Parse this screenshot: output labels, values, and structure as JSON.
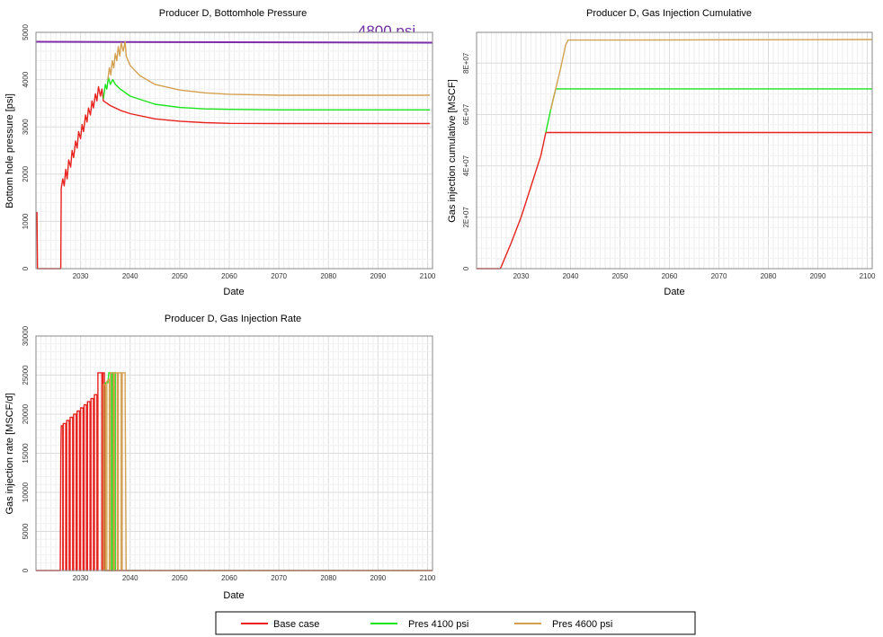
{
  "colors": {
    "base": "#e8231f",
    "p4100": "#18e418",
    "p4600": "#d4a050",
    "ref": "#7e2fa8",
    "grid": "#dcdcdc"
  },
  "legend": {
    "items": [
      {
        "label": "Base case",
        "color": "#e8231f"
      },
      {
        "label": "Pres 4100 psi",
        "color": "#18e418"
      },
      {
        "label": "Pres 4600 psi",
        "color": "#d4a050"
      }
    ],
    "placement": "bottom"
  },
  "chart_data": [
    {
      "type": "line",
      "title": "Producer D, Bottomhole Pressure",
      "xlabel": "Date",
      "ylabel": "Bottom hole pressure [psi]",
      "xlim": [
        2021,
        2101
      ],
      "ylim": [
        0,
        5000
      ],
      "xticks": [
        "2030",
        "2040",
        "2050",
        "2060",
        "2070",
        "2080",
        "2090",
        "2100"
      ],
      "yticks": [
        "0",
        "1000",
        "2000",
        "3000",
        "4000",
        "5000"
      ],
      "grid": true,
      "annotation": "4800 psi",
      "reference_line": {
        "y": 4800,
        "color": "#7e2fa8"
      },
      "series": [
        {
          "name": "Base case",
          "color": "#e8231f",
          "points": [
            [
              2021.2,
              1200
            ],
            [
              2021.3,
              0
            ],
            [
              2026,
              0
            ],
            [
              2026.1,
              1700
            ],
            [
              2026.4,
              1900
            ],
            [
              2026.7,
              1750
            ],
            [
              2027,
              2100
            ],
            [
              2027.3,
              1900
            ],
            [
              2027.6,
              2300
            ],
            [
              2028,
              2150
            ],
            [
              2028.3,
              2500
            ],
            [
              2028.6,
              2350
            ],
            [
              2029,
              2700
            ],
            [
              2029.3,
              2550
            ],
            [
              2029.6,
              2900
            ],
            [
              2030,
              2750
            ],
            [
              2030.3,
              3050
            ],
            [
              2030.6,
              2900
            ],
            [
              2031,
              3250
            ],
            [
              2031.3,
              3100
            ],
            [
              2031.6,
              3400
            ],
            [
              2032,
              3250
            ],
            [
              2032.3,
              3550
            ],
            [
              2032.6,
              3400
            ],
            [
              2033,
              3700
            ],
            [
              2033.3,
              3550
            ],
            [
              2033.6,
              3850
            ],
            [
              2034,
              3650
            ],
            [
              2034.3,
              3800
            ],
            [
              2034.6,
              3550
            ],
            [
              2036,
              3450
            ],
            [
              2038,
              3350
            ],
            [
              2040,
              3280
            ],
            [
              2045,
              3170
            ],
            [
              2050,
              3120
            ],
            [
              2055,
              3090
            ],
            [
              2060,
              3075
            ],
            [
              2070,
              3070
            ],
            [
              2080,
              3070
            ],
            [
              2100.5,
              3070
            ]
          ]
        },
        {
          "name": "Pres 4100 psi",
          "color": "#18e418",
          "points": [
            [
              2034.6,
              3600
            ],
            [
              2035,
              3900
            ],
            [
              2035.3,
              3800
            ],
            [
              2035.6,
              4050
            ],
            [
              2036,
              3900
            ],
            [
              2036.5,
              4000
            ],
            [
              2037,
              3900
            ],
            [
              2038,
              3800
            ],
            [
              2040,
              3650
            ],
            [
              2045,
              3480
            ],
            [
              2050,
              3410
            ],
            [
              2055,
              3380
            ],
            [
              2060,
              3370
            ],
            [
              2070,
              3360
            ],
            [
              2080,
              3360
            ],
            [
              2100.5,
              3360
            ]
          ]
        },
        {
          "name": "Pres 4600 psi",
          "color": "#d4a050",
          "points": [
            [
              2035.5,
              4000
            ],
            [
              2035.8,
              4250
            ],
            [
              2036.1,
              4100
            ],
            [
              2036.4,
              4400
            ],
            [
              2036.7,
              4250
            ],
            [
              2037,
              4550
            ],
            [
              2037.3,
              4400
            ],
            [
              2037.6,
              4700
            ],
            [
              2037.9,
              4500
            ],
            [
              2038.2,
              4780
            ],
            [
              2038.6,
              4600
            ],
            [
              2039,
              4800
            ],
            [
              2039.2,
              4500
            ],
            [
              2040,
              4300
            ],
            [
              2042,
              4080
            ],
            [
              2045,
              3900
            ],
            [
              2050,
              3780
            ],
            [
              2055,
              3720
            ],
            [
              2060,
              3690
            ],
            [
              2070,
              3670
            ],
            [
              2080,
              3670
            ],
            [
              2100.5,
              3670
            ]
          ]
        }
      ]
    },
    {
      "type": "line",
      "title": "Producer D, Gas Injection Cumulative",
      "xlabel": "Date",
      "ylabel": "Gas injection cumulative [MSCF]",
      "xlim": [
        2021,
        2101
      ],
      "ylim": [
        0,
        92000000
      ],
      "xticks": [
        "2030",
        "2040",
        "2050",
        "2060",
        "2070",
        "2080",
        "2090",
        "2100"
      ],
      "yticks": [
        "0",
        "2E+07",
        "4E+07",
        "6E+07",
        "8E+07"
      ],
      "grid": true,
      "series": [
        {
          "name": "Base case",
          "color": "#e8231f",
          "points": [
            [
              2021,
              0
            ],
            [
              2025.8,
              0
            ],
            [
              2026,
              800000
            ],
            [
              2028,
              10000000
            ],
            [
              2030,
              20000000
            ],
            [
              2032,
              32000000
            ],
            [
              2034,
              44000000
            ],
            [
              2035,
              53000000
            ],
            [
              2040,
              53000000
            ],
            [
              2060,
              53000000
            ],
            [
              2101,
              53000000
            ]
          ]
        },
        {
          "name": "Pres 4100 psi",
          "color": "#18e418",
          "points": [
            [
              2035,
              53000000
            ],
            [
              2036,
              62000000
            ],
            [
              2037,
              70000000
            ],
            [
              2040,
              70000000
            ],
            [
              2060,
              70000000
            ],
            [
              2101,
              70000000
            ]
          ]
        },
        {
          "name": "Pres 4600 psi",
          "color": "#d4a050",
          "points": [
            [
              2036,
              62000000
            ],
            [
              2037,
              70000000
            ],
            [
              2038,
              78000000
            ],
            [
              2039,
              87000000
            ],
            [
              2039.5,
              89000000
            ],
            [
              2050,
              89000000
            ],
            [
              2070,
              89100000
            ],
            [
              2101,
              89200000
            ]
          ]
        }
      ]
    },
    {
      "type": "line",
      "title": "Producer D, Gas Injection Rate",
      "xlabel": "Date",
      "ylabel": "Gas injection rate [MSCF/d]",
      "xlim": [
        2021,
        2101
      ],
      "ylim": [
        0,
        30000
      ],
      "xticks": [
        "2030",
        "2040",
        "2050",
        "2060",
        "2070",
        "2080",
        "2090",
        "2100"
      ],
      "yticks": [
        "0",
        "5000",
        "10000",
        "15000",
        "20000",
        "25000",
        "30000"
      ],
      "grid": true,
      "series": [
        {
          "name": "Base case",
          "color": "#e8231f",
          "points": [
            [
              2021,
              0
            ],
            [
              2025.9,
              0
            ],
            [
              2026,
              14500
            ],
            [
              2026.1,
              18500
            ],
            [
              2026.4,
              18500
            ],
            [
              2026.4,
              0
            ],
            [
              2026.5,
              0
            ],
            [
              2026.5,
              18800
            ],
            [
              2027,
              18800
            ],
            [
              2027,
              0
            ],
            [
              2027.2,
              0
            ],
            [
              2027.2,
              19200
            ],
            [
              2027.7,
              19200
            ],
            [
              2027.7,
              0
            ],
            [
              2027.9,
              0
            ],
            [
              2027.9,
              19600
            ],
            [
              2028.4,
              19600
            ],
            [
              2028.4,
              0
            ],
            [
              2028.6,
              0
            ],
            [
              2028.6,
              20000
            ],
            [
              2029.1,
              20000
            ],
            [
              2029.1,
              0
            ],
            [
              2029.3,
              0
            ],
            [
              2029.3,
              20400
            ],
            [
              2029.8,
              20400
            ],
            [
              2029.8,
              0
            ],
            [
              2030,
              0
            ],
            [
              2030,
              20800
            ],
            [
              2030.5,
              20800
            ],
            [
              2030.5,
              0
            ],
            [
              2030.7,
              0
            ],
            [
              2030.7,
              21200
            ],
            [
              2031.2,
              21200
            ],
            [
              2031.2,
              0
            ],
            [
              2031.4,
              0
            ],
            [
              2031.4,
              21600
            ],
            [
              2031.9,
              21600
            ],
            [
              2031.9,
              0
            ],
            [
              2032.1,
              0
            ],
            [
              2032.1,
              22000
            ],
            [
              2032.6,
              22000
            ],
            [
              2032.6,
              0
            ],
            [
              2032.8,
              0
            ],
            [
              2032.8,
              22500
            ],
            [
              2033.3,
              22500
            ],
            [
              2033.3,
              0
            ],
            [
              2033.5,
              0
            ],
            [
              2033.5,
              25300
            ],
            [
              2034.3,
              25300
            ],
            [
              2034.3,
              0
            ],
            [
              2034.5,
              0
            ],
            [
              2034.5,
              25300
            ],
            [
              2034.8,
              25300
            ],
            [
              2034.8,
              0
            ],
            [
              2101,
              0
            ]
          ]
        },
        {
          "name": "Pres 4100 psi",
          "color": "#18e418",
          "points": [
            [
              2034.8,
              0
            ],
            [
              2035,
              0
            ],
            [
              2035,
              24000
            ],
            [
              2035.5,
              24000
            ],
            [
              2035.7,
              25300
            ],
            [
              2036.3,
              25300
            ],
            [
              2036.3,
              0
            ],
            [
              2036.5,
              0
            ],
            [
              2036.5,
              25300
            ],
            [
              2037,
              25300
            ],
            [
              2037,
              0
            ]
          ]
        },
        {
          "name": "Pres 4600 psi",
          "color": "#d4a050",
          "points": [
            [
              2034.6,
              0
            ],
            [
              2034.6,
              23800
            ],
            [
              2035,
              23800
            ],
            [
              2035,
              0
            ],
            [
              2035.3,
              0
            ],
            [
              2035.3,
              24200
            ],
            [
              2035.8,
              24500
            ],
            [
              2035.8,
              0
            ],
            [
              2036,
              0
            ],
            [
              2036,
              25300
            ],
            [
              2036.6,
              25300
            ],
            [
              2036.6,
              0
            ],
            [
              2036.8,
              0
            ],
            [
              2036.8,
              25300
            ],
            [
              2037.4,
              25300
            ],
            [
              2037.4,
              0
            ],
            [
              2037.6,
              0
            ],
            [
              2037.6,
              25300
            ],
            [
              2038.2,
              25300
            ],
            [
              2038.2,
              0
            ],
            [
              2038.4,
              0
            ],
            [
              2038.4,
              25300
            ],
            [
              2039,
              25300
            ],
            [
              2039,
              22000
            ],
            [
              2039.2,
              0
            ],
            [
              2101,
              0
            ]
          ]
        }
      ]
    }
  ]
}
